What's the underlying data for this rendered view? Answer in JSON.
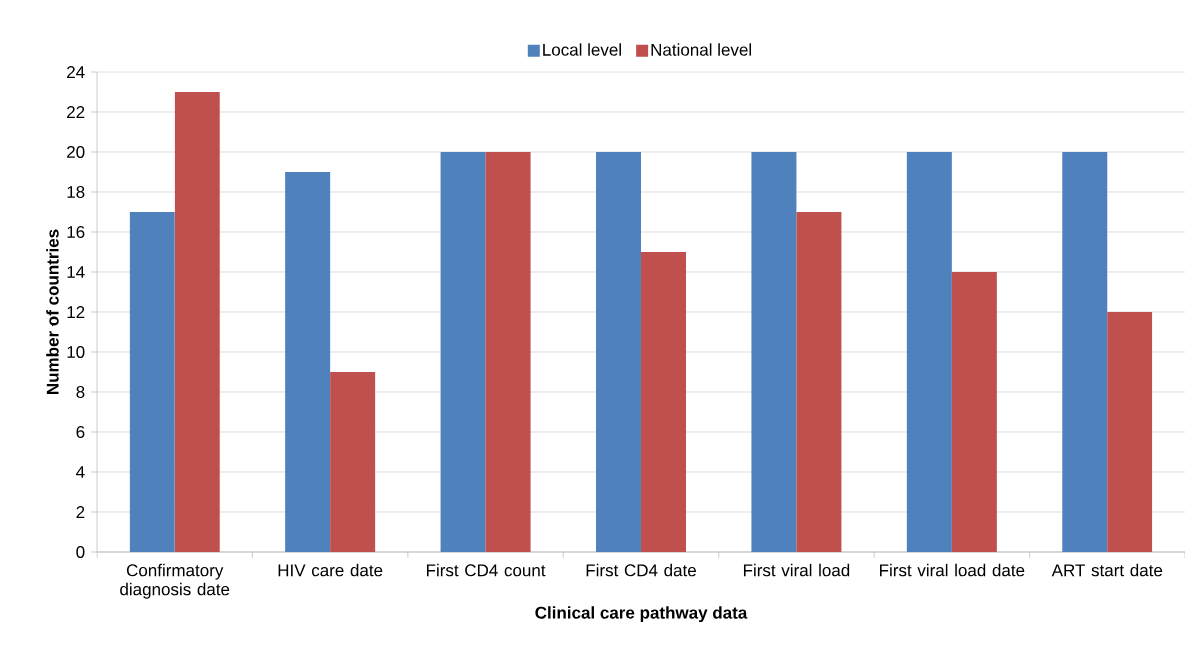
{
  "chart_data": {
    "type": "bar",
    "xlabel": "Clinical care pathway data",
    "ylabel": "Number of countries",
    "categories": [
      "Confirmatory diagnosis date",
      "HIV care date",
      "First CD4 count",
      "First CD4 date",
      "First viral load",
      "First viral load date",
      "ART start date"
    ],
    "series": [
      {
        "name": "Local level",
        "color": "#4f81bd",
        "values": [
          17,
          19,
          20,
          20,
          20,
          20,
          20
        ]
      },
      {
        "name": "National level",
        "color": "#c0504d",
        "values": [
          23,
          9,
          20,
          15,
          17,
          14,
          12
        ]
      }
    ],
    "ylim": [
      0,
      24
    ],
    "yticks": [
      0,
      2,
      4,
      6,
      8,
      10,
      12,
      14,
      16,
      18,
      20,
      22,
      24
    ],
    "grid": "y",
    "legend": "top"
  }
}
